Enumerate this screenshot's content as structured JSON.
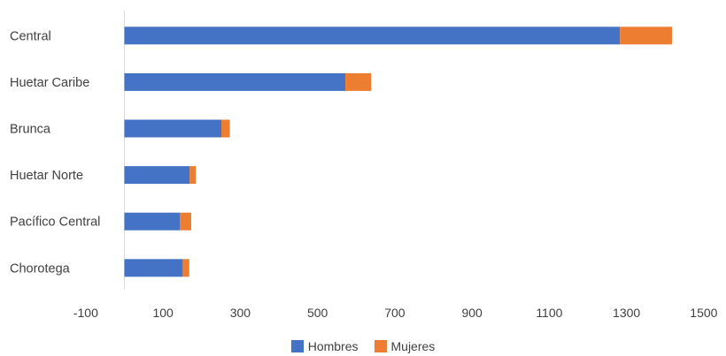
{
  "chart_data": {
    "type": "bar",
    "orientation": "horizontal",
    "stacked": true,
    "categories": [
      "Central",
      "Huetar Caribe",
      "Brunca",
      "Huetar Norte",
      "Pacífico Central",
      "Chorotega"
    ],
    "series": [
      {
        "name": "Hombres",
        "color": "#4472C4",
        "values": [
          1283,
          572,
          251,
          169,
          144,
          151
        ]
      },
      {
        "name": "Mujeres",
        "color": "#ED7D31",
        "values": [
          135,
          67,
          22,
          16,
          29,
          17
        ]
      }
    ],
    "x_ticks": [
      "-100",
      "100",
      "300",
      "500",
      "700",
      "900",
      "1100",
      "1300",
      "1500"
    ],
    "xlim": [
      -100,
      1500
    ],
    "grid": false,
    "legend": "bottom"
  }
}
